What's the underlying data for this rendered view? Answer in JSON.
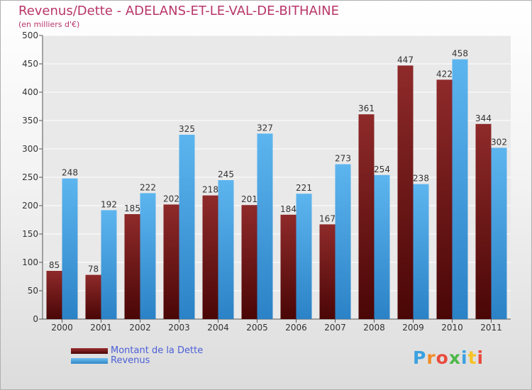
{
  "chart_data": {
    "type": "bar",
    "title": "Revenus/Dette - ADELANS-ET-LE-VAL-DE-BITHAINE",
    "subtitle": "(en milliers d'€)",
    "categories": [
      "2000",
      "2001",
      "2002",
      "2003",
      "2004",
      "2005",
      "2006",
      "2007",
      "2008",
      "2009",
      "2010",
      "2011"
    ],
    "series": [
      {
        "name": "Montant de la Dette",
        "color": "#7f1d1d",
        "values": [
          85,
          78,
          185,
          202,
          218,
          201,
          184,
          167,
          361,
          447,
          422,
          344
        ]
      },
      {
        "name": "Revenus",
        "color": "#3a9be0",
        "values": [
          248,
          192,
          222,
          325,
          245,
          327,
          221,
          273,
          254,
          238,
          458,
          302
        ]
      }
    ],
    "ylim": [
      0,
      500
    ],
    "yticks": [
      0,
      50,
      100,
      150,
      200,
      250,
      300,
      350,
      400,
      450,
      500
    ],
    "grid": true,
    "legend": "bottom-left"
  },
  "logo": {
    "letters": [
      "P",
      "r",
      "o",
      "x",
      "i",
      "t",
      "i"
    ],
    "colors": [
      "#3aa1e0",
      "#f28c28",
      "#e94c3d",
      "#4db848",
      "#3aa1e0",
      "#f7c325",
      "#e94c3d"
    ]
  }
}
